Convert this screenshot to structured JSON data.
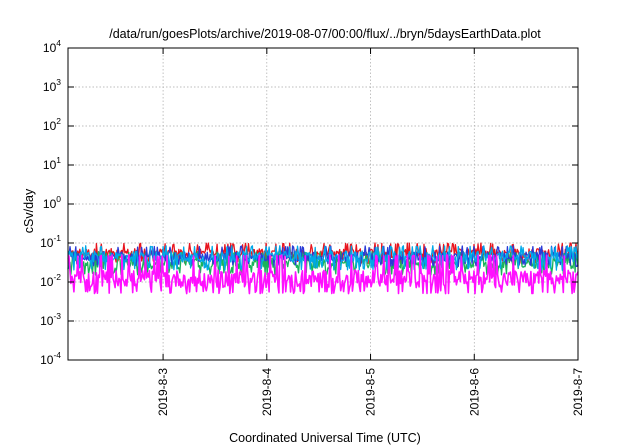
{
  "chart_data": {
    "type": "line",
    "title": "/data/run/goesPlots/archive/2019-08-07/00:00/flux/../bryn/5daysEarthData.plot",
    "xlabel": "Coordinated Universal Time (UTC)",
    "ylabel": "cSv/day",
    "yscale": "log",
    "ylim": [
      0.0001,
      10000
    ],
    "y_ticks": [
      {
        "base": "10",
        "exp": "-4",
        "value": 0.0001
      },
      {
        "base": "10",
        "exp": "-3",
        "value": 0.001
      },
      {
        "base": "10",
        "exp": "-2",
        "value": 0.01
      },
      {
        "base": "10",
        "exp": "-1",
        "value": 0.1
      },
      {
        "base": "10",
        "exp": "0",
        "value": 1
      },
      {
        "base": "10",
        "exp": "1",
        "value": 10
      },
      {
        "base": "10",
        "exp": "2",
        "value": 100
      },
      {
        "base": "10",
        "exp": "3",
        "value": 1000
      },
      {
        "base": "10",
        "exp": "4",
        "value": 10000
      }
    ],
    "xlim": [
      "2019-08-02 02:00",
      "2019-08-07 00:00"
    ],
    "x_ticks": [
      {
        "label": "2019-8-3",
        "value": "2019-08-03 00:00"
      },
      {
        "label": "2019-8-4",
        "value": "2019-08-04 00:00"
      },
      {
        "label": "2019-8-5",
        "value": "2019-08-05 00:00"
      },
      {
        "label": "2019-8-6",
        "value": "2019-08-06 00:00"
      },
      {
        "label": "2019-8-7",
        "value": "2019-08-07 00:00"
      }
    ],
    "grid": true,
    "series": [
      {
        "color": "#e8141e",
        "base": 0.055,
        "min": 0.03,
        "max": 0.1
      },
      {
        "color": "#1ab35a",
        "base": 0.03,
        "min": 0.015,
        "max": 0.06
      },
      {
        "color": "#2a3bd6",
        "base": 0.045,
        "min": 0.025,
        "max": 0.085
      },
      {
        "color": "#00a8e8",
        "base": 0.045,
        "min": 0.02,
        "max": 0.085
      },
      {
        "color": "#ff10ff",
        "base": 0.012,
        "min": 0.005,
        "max": 0.05
      }
    ]
  }
}
